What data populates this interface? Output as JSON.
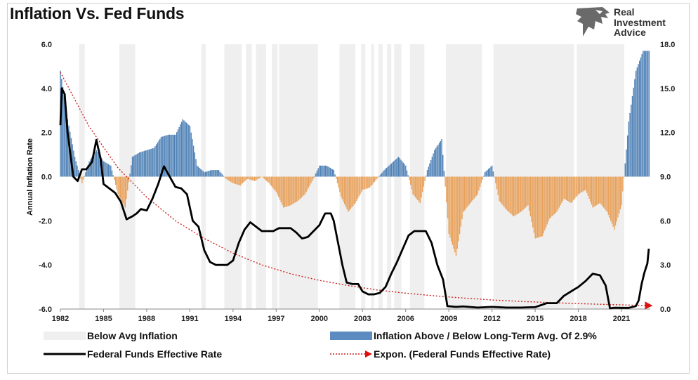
{
  "title": "Inflation Vs. Fed Funds",
  "brand": {
    "line1": "Real",
    "line2": "Investment",
    "line3": "Advice"
  },
  "colors": {
    "shade": "#efefef",
    "above": "#4f81b6",
    "below": "#e8a15a",
    "fedfunds": "#000000",
    "trend": "#cc2222"
  },
  "chart_data": {
    "type": "bar",
    "title": "Inflation Vs. Fed Funds",
    "ylabel": "Annual Inflation Rate",
    "xlim": [
      1982.0,
      2023.0
    ],
    "ylim_left": [
      -6,
      6
    ],
    "ylim_right": [
      0,
      18
    ],
    "x_ticks": [
      "1982",
      "1985",
      "1988",
      "1991",
      "1994",
      "1997",
      "2000",
      "2003",
      "2006",
      "2009",
      "2012",
      "2015",
      "2018",
      "2021"
    ],
    "y_left_ticks": [
      "6.0",
      "4.0",
      "2.0",
      "0.0",
      "-2.0",
      "-4.0",
      "-6.0"
    ],
    "y_right_ticks": [
      "18.0",
      "15.0",
      "12.0",
      "9.0",
      "6.0",
      "3.0",
      "0.0"
    ],
    "below_avg_periods": [
      [
        1983.3,
        1983.7
      ],
      [
        1986.1,
        1987.2
      ],
      [
        1991.8,
        1992.1
      ],
      [
        1993.4,
        1994.6
      ],
      [
        1994.9,
        1995.3
      ],
      [
        1995.6,
        1996.3
      ],
      [
        1996.7,
        1997.1
      ],
      [
        1997.2,
        1999.9
      ],
      [
        2001.4,
        2002.5
      ],
      [
        2002.9,
        2003.2
      ],
      [
        2003.6,
        2003.8
      ],
      [
        2004.1,
        2004.4
      ],
      [
        2004.7,
        2005.0
      ],
      [
        2005.2,
        2005.7
      ],
      [
        2006.3,
        2007.3
      ],
      [
        2008.8,
        2011.3
      ],
      [
        2012.1,
        2017.7
      ],
      [
        2017.9,
        2021.2
      ]
    ],
    "series": [
      {
        "name": "Inflation Above / Below Long-Term Avg. Of 2.9%",
        "kind": "bar",
        "x": [
          1982.0,
          1982.5,
          1983.0,
          1983.5,
          1984.0,
          1984.5,
          1985.0,
          1985.5,
          1986.0,
          1986.5,
          1987.0,
          1987.5,
          1988.0,
          1988.5,
          1989.0,
          1989.5,
          1990.0,
          1990.5,
          1991.0,
          1991.5,
          1992.0,
          1992.5,
          1993.0,
          1993.5,
          1994.0,
          1994.5,
          1995.0,
          1995.5,
          1996.0,
          1996.5,
          1997.0,
          1997.5,
          1998.0,
          1998.5,
          1999.0,
          1999.5,
          2000.0,
          2000.5,
          2001.0,
          2001.5,
          2002.0,
          2002.5,
          2003.0,
          2003.5,
          2004.0,
          2004.5,
          2005.0,
          2005.5,
          2006.0,
          2006.5,
          2007.0,
          2007.5,
          2008.0,
          2008.5,
          2009.0,
          2009.5,
          2010.0,
          2010.5,
          2011.0,
          2011.5,
          2012.0,
          2012.5,
          2013.0,
          2013.5,
          2014.0,
          2014.5,
          2015.0,
          2015.5,
          2016.0,
          2016.5,
          2017.0,
          2017.5,
          2018.0,
          2018.5,
          2019.0,
          2019.5,
          2020.0,
          2020.5,
          2021.0,
          2021.5,
          2022.0,
          2022.5
        ],
        "values": [
          4.8,
          2.6,
          0.9,
          -0.3,
          0.7,
          1.2,
          0.7,
          0.5,
          -0.8,
          -1.4,
          0.9,
          1.1,
          1.2,
          1.3,
          1.8,
          1.9,
          1.9,
          2.6,
          2.3,
          0.5,
          0.2,
          0.3,
          0.3,
          -0.1,
          -0.3,
          -0.4,
          -0.1,
          -0.2,
          0.0,
          -0.3,
          -0.7,
          -1.4,
          -1.3,
          -1.1,
          -0.8,
          -0.2,
          0.5,
          0.5,
          0.3,
          -0.9,
          -1.6,
          -1.2,
          -0.6,
          -0.5,
          -0.1,
          0.3,
          0.6,
          0.9,
          0.5,
          -0.8,
          -1.2,
          0.3,
          1.2,
          1.7,
          -2.6,
          -3.6,
          -1.6,
          -1.2,
          -0.8,
          0.2,
          0.5,
          -1.1,
          -1.5,
          -1.8,
          -1.6,
          -1.3,
          -2.8,
          -2.7,
          -1.9,
          -1.6,
          -1.0,
          -1.2,
          -0.8,
          -0.6,
          -1.4,
          -1.2,
          -1.6,
          -2.4,
          -1.3,
          2.5,
          4.8,
          5.7
        ]
      },
      {
        "name": "Federal Funds Effective Rate",
        "kind": "line",
        "x": [
          1982.0,
          1982.1,
          1982.3,
          1982.5,
          1982.7,
          1982.9,
          1983.2,
          1983.5,
          1983.8,
          1984.2,
          1984.5,
          1984.8,
          1985.0,
          1985.4,
          1985.8,
          1986.2,
          1986.6,
          1987.0,
          1987.3,
          1987.6,
          1988.0,
          1988.4,
          1988.8,
          1989.2,
          1989.6,
          1990.0,
          1990.4,
          1990.8,
          1991.2,
          1991.6,
          1992.0,
          1992.4,
          1992.8,
          1993.2,
          1993.6,
          1994.0,
          1994.4,
          1994.8,
          1995.2,
          1995.6,
          1996.0,
          1996.4,
          1996.8,
          1997.2,
          1997.6,
          1998.0,
          1998.4,
          1998.8,
          1999.2,
          1999.6,
          2000.0,
          2000.4,
          2000.8,
          2001.0,
          2001.3,
          2001.6,
          2001.9,
          2002.3,
          2002.7,
          2003.0,
          2003.4,
          2003.8,
          2004.2,
          2004.6,
          2005.0,
          2005.4,
          2005.8,
          2006.2,
          2006.6,
          2007.0,
          2007.4,
          2007.8,
          2008.2,
          2008.6,
          2008.9,
          2009.5,
          2010.0,
          2011.0,
          2012.0,
          2013.0,
          2014.0,
          2015.0,
          2015.8,
          2016.5,
          2017.0,
          2017.5,
          2018.0,
          2018.5,
          2019.0,
          2019.5,
          2019.9,
          2020.2,
          2020.5,
          2021.0,
          2021.5,
          2022.0,
          2022.2,
          2022.4,
          2022.6,
          2022.8,
          2022.9
        ],
        "values": [
          12.5,
          15.0,
          14.6,
          12.0,
          10.5,
          9.0,
          8.7,
          9.5,
          9.5,
          10.0,
          11.5,
          10.2,
          8.5,
          8.2,
          7.9,
          7.3,
          6.1,
          6.3,
          6.5,
          6.8,
          6.7,
          7.5,
          8.5,
          9.7,
          9.0,
          8.3,
          8.2,
          7.8,
          6.0,
          5.6,
          4.0,
          3.2,
          3.0,
          3.0,
          3.0,
          3.3,
          4.5,
          5.4,
          5.9,
          5.6,
          5.3,
          5.3,
          5.3,
          5.5,
          5.5,
          5.5,
          5.2,
          4.8,
          4.9,
          5.3,
          5.7,
          6.5,
          6.5,
          6.0,
          4.5,
          3.0,
          1.8,
          1.7,
          1.7,
          1.2,
          1.0,
          1.0,
          1.1,
          1.5,
          2.4,
          3.2,
          4.1,
          5.0,
          5.3,
          5.3,
          5.3,
          4.5,
          3.0,
          2.0,
          0.2,
          0.15,
          0.18,
          0.1,
          0.15,
          0.1,
          0.1,
          0.13,
          0.4,
          0.4,
          0.9,
          1.2,
          1.5,
          1.9,
          2.4,
          2.3,
          1.6,
          0.05,
          0.09,
          0.08,
          0.08,
          0.2,
          0.6,
          1.7,
          2.5,
          3.1,
          4.1
        ]
      },
      {
        "name": "Expon. (Federal Funds Effective Rate)",
        "kind": "trend",
        "x": [
          1982.0,
          1984.0,
          1986.0,
          1988.0,
          1990.0,
          1992.0,
          1994.0,
          1996.0,
          1998.0,
          2000.0,
          2002.0,
          2004.0,
          2006.0,
          2008.0,
          2010.0,
          2012.0,
          2014.0,
          2016.0,
          2018.0,
          2020.0,
          2022.0,
          2022.9
        ],
        "values": [
          16.1,
          12.4,
          9.6,
          7.6,
          6.0,
          4.8,
          3.8,
          3.0,
          2.4,
          1.95,
          1.6,
          1.3,
          1.08,
          0.9,
          0.75,
          0.62,
          0.52,
          0.44,
          0.37,
          0.31,
          0.26,
          0.24
        ]
      }
    ],
    "legend": {
      "shade": "Below Avg Inflation",
      "bars": "Inflation Above / Below Long-Term Avg. Of 2.9%",
      "line": "Federal Funds Effective Rate",
      "trend": "Expon. (Federal Funds Effective Rate)"
    }
  }
}
